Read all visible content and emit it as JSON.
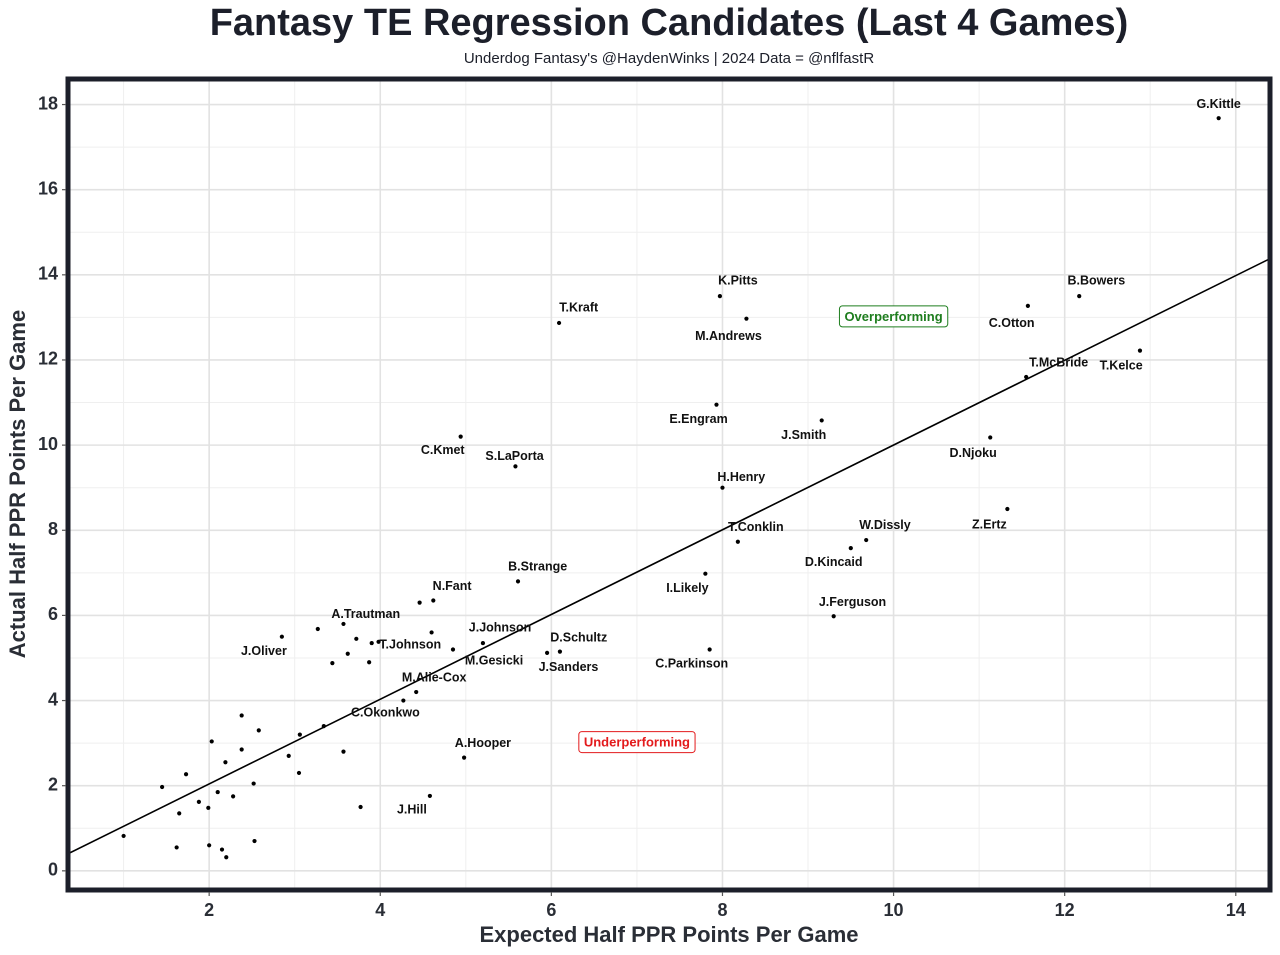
{
  "chart_data": {
    "type": "scatter",
    "title": "Fantasy TE Regression Candidates (Last 4 Games)",
    "subtitle": "Underdog Fantasy's @HaydenWinks | 2024 Data = @nflfastR",
    "xlabel": "Expected Half PPR Points Per Game",
    "ylabel": "Actual Half PPR Points Per Game",
    "xlim": [
      0.35,
      14.4
    ],
    "ylim": [
      -0.45,
      18.6
    ],
    "xticks": [
      "2",
      "4",
      "6",
      "8",
      "10",
      "12",
      "14"
    ],
    "yticks": [
      "0",
      "2",
      "4",
      "6",
      "8",
      "10",
      "12",
      "14",
      "16",
      "18"
    ],
    "grid": true,
    "trend_line": {
      "x": [
        0.35,
        14.4
      ],
      "y": [
        0.4,
        14.38
      ]
    },
    "annotations": [
      {
        "text": "Overperforming",
        "x": 10.0,
        "y": 13.0,
        "color": "#1e7d1e"
      },
      {
        "text": "Underperforming",
        "x": 7.0,
        "y": 3.0,
        "color": "#e31a1c"
      }
    ],
    "labeled_points": [
      {
        "label": "G.Kittle",
        "x": 13.8,
        "y": 17.68,
        "lx": 13.8,
        "ly": 18.0
      },
      {
        "label": "K.Pitts",
        "x": 7.97,
        "y": 13.5,
        "lx": 8.18,
        "ly": 13.85
      },
      {
        "label": "B.Bowers",
        "x": 12.17,
        "y": 13.5,
        "lx": 12.37,
        "ly": 13.85
      },
      {
        "label": "T.Kraft",
        "x": 6.09,
        "y": 12.87,
        "lx": 6.32,
        "ly": 13.22
      },
      {
        "label": "C.Otton",
        "x": 11.57,
        "y": 13.27,
        "lx": 11.38,
        "ly": 12.85
      },
      {
        "label": "M.Andrews",
        "x": 8.28,
        "y": 12.97,
        "lx": 8.07,
        "ly": 12.55
      },
      {
        "label": "T.McBride",
        "x": 11.55,
        "y": 11.6,
        "lx": 11.93,
        "ly": 11.93
      },
      {
        "label": "T.Kelce",
        "x": 12.88,
        "y": 12.22,
        "lx": 12.66,
        "ly": 11.85
      },
      {
        "label": "E.Engram",
        "x": 7.93,
        "y": 10.95,
        "lx": 7.72,
        "ly": 10.6
      },
      {
        "label": "J.Smith",
        "x": 9.16,
        "y": 10.58,
        "lx": 8.95,
        "ly": 10.22
      },
      {
        "label": "C.Kmet",
        "x": 4.94,
        "y": 10.2,
        "lx": 4.73,
        "ly": 9.87
      },
      {
        "label": "D.Njoku",
        "x": 11.13,
        "y": 10.18,
        "lx": 10.93,
        "ly": 9.8
      },
      {
        "label": "S.LaPorta",
        "x": 5.58,
        "y": 9.5,
        "lx": 5.57,
        "ly": 9.73
      },
      {
        "label": "H.Henry",
        "x": 8.0,
        "y": 9.0,
        "lx": 8.22,
        "ly": 9.23
      },
      {
        "label": "Z.Ertz",
        "x": 11.33,
        "y": 8.5,
        "lx": 11.12,
        "ly": 8.12
      },
      {
        "label": "T.Conklin",
        "x": 8.18,
        "y": 7.73,
        "lx": 8.39,
        "ly": 8.06
      },
      {
        "label": "W.Dissly",
        "x": 9.68,
        "y": 7.77,
        "lx": 9.9,
        "ly": 8.11
      },
      {
        "label": "D.Kincaid",
        "x": 9.5,
        "y": 7.58,
        "lx": 9.3,
        "ly": 7.24
      },
      {
        "label": "I.Likely",
        "x": 7.8,
        "y": 6.98,
        "lx": 7.59,
        "ly": 6.63
      },
      {
        "label": "B.Strange",
        "x": 5.61,
        "y": 6.8,
        "lx": 5.84,
        "ly": 7.13
      },
      {
        "label": "N.Fant",
        "x": 4.62,
        "y": 6.35,
        "lx": 4.84,
        "ly": 6.68
      },
      {
        "label": "J.Ferguson",
        "x": 9.3,
        "y": 5.98,
        "lx": 9.52,
        "ly": 6.3
      },
      {
        "label": "A.Trautman",
        "x": 3.57,
        "y": 5.8,
        "lx": 3.83,
        "ly": 6.02
      },
      {
        "label": "J.Johnson",
        "x": 5.2,
        "y": 5.35,
        "lx": 5.4,
        "ly": 5.7
      },
      {
        "label": "D.Schultz",
        "x": 6.1,
        "y": 5.15,
        "lx": 6.32,
        "ly": 5.47
      },
      {
        "label": "T.Johnson",
        "x": 3.9,
        "y": 5.35,
        "lx": 4.35,
        "ly": 5.3
      },
      {
        "label": "J.Oliver",
        "x": 2.85,
        "y": 5.5,
        "lx": 2.64,
        "ly": 5.15
      },
      {
        "label": "M.Gesicki",
        "x": 4.85,
        "y": 5.2,
        "lx": 5.33,
        "ly": 4.93
      },
      {
        "label": "C.Parkinson",
        "x": 7.85,
        "y": 5.2,
        "lx": 7.64,
        "ly": 4.85
      },
      {
        "label": "J.Sanders",
        "x": 5.95,
        "y": 5.12,
        "lx": 6.2,
        "ly": 4.77
      },
      {
        "label": "M.Alie-Cox",
        "x": 4.42,
        "y": 4.2,
        "lx": 4.63,
        "ly": 4.53
      },
      {
        "label": "C.Okonkwo",
        "x": 4.27,
        "y": 4.0,
        "lx": 4.06,
        "ly": 3.7
      },
      {
        "label": "A.Hooper",
        "x": 4.98,
        "y": 2.66,
        "lx": 5.2,
        "ly": 2.99
      },
      {
        "label": "J.Hill",
        "x": 4.58,
        "y": 1.76,
        "lx": 4.37,
        "ly": 1.42
      }
    ],
    "other_points": [
      [
        4.46,
        6.3
      ],
      [
        4.6,
        5.6
      ],
      [
        3.27,
        5.68
      ],
      [
        3.72,
        5.45
      ],
      [
        3.62,
        5.1
      ],
      [
        3.98,
        5.38
      ],
      [
        3.44,
        4.88
      ],
      [
        3.87,
        4.9
      ],
      [
        2.38,
        3.65
      ],
      [
        2.58,
        3.3
      ],
      [
        3.06,
        3.2
      ],
      [
        3.34,
        3.4
      ],
      [
        2.03,
        3.04
      ],
      [
        2.38,
        2.85
      ],
      [
        3.57,
        2.8
      ],
      [
        2.93,
        2.7
      ],
      [
        2.19,
        2.55
      ],
      [
        1.73,
        2.27
      ],
      [
        3.05,
        2.3
      ],
      [
        2.52,
        2.05
      ],
      [
        1.45,
        1.97
      ],
      [
        2.1,
        1.85
      ],
      [
        2.28,
        1.75
      ],
      [
        1.88,
        1.62
      ],
      [
        1.99,
        1.48
      ],
      [
        3.77,
        1.5
      ],
      [
        1.65,
        1.35
      ],
      [
        1.0,
        0.82
      ],
      [
        2.53,
        0.7
      ],
      [
        1.62,
        0.55
      ],
      [
        2.0,
        0.6
      ],
      [
        2.15,
        0.5
      ],
      [
        2.2,
        0.32
      ]
    ]
  }
}
